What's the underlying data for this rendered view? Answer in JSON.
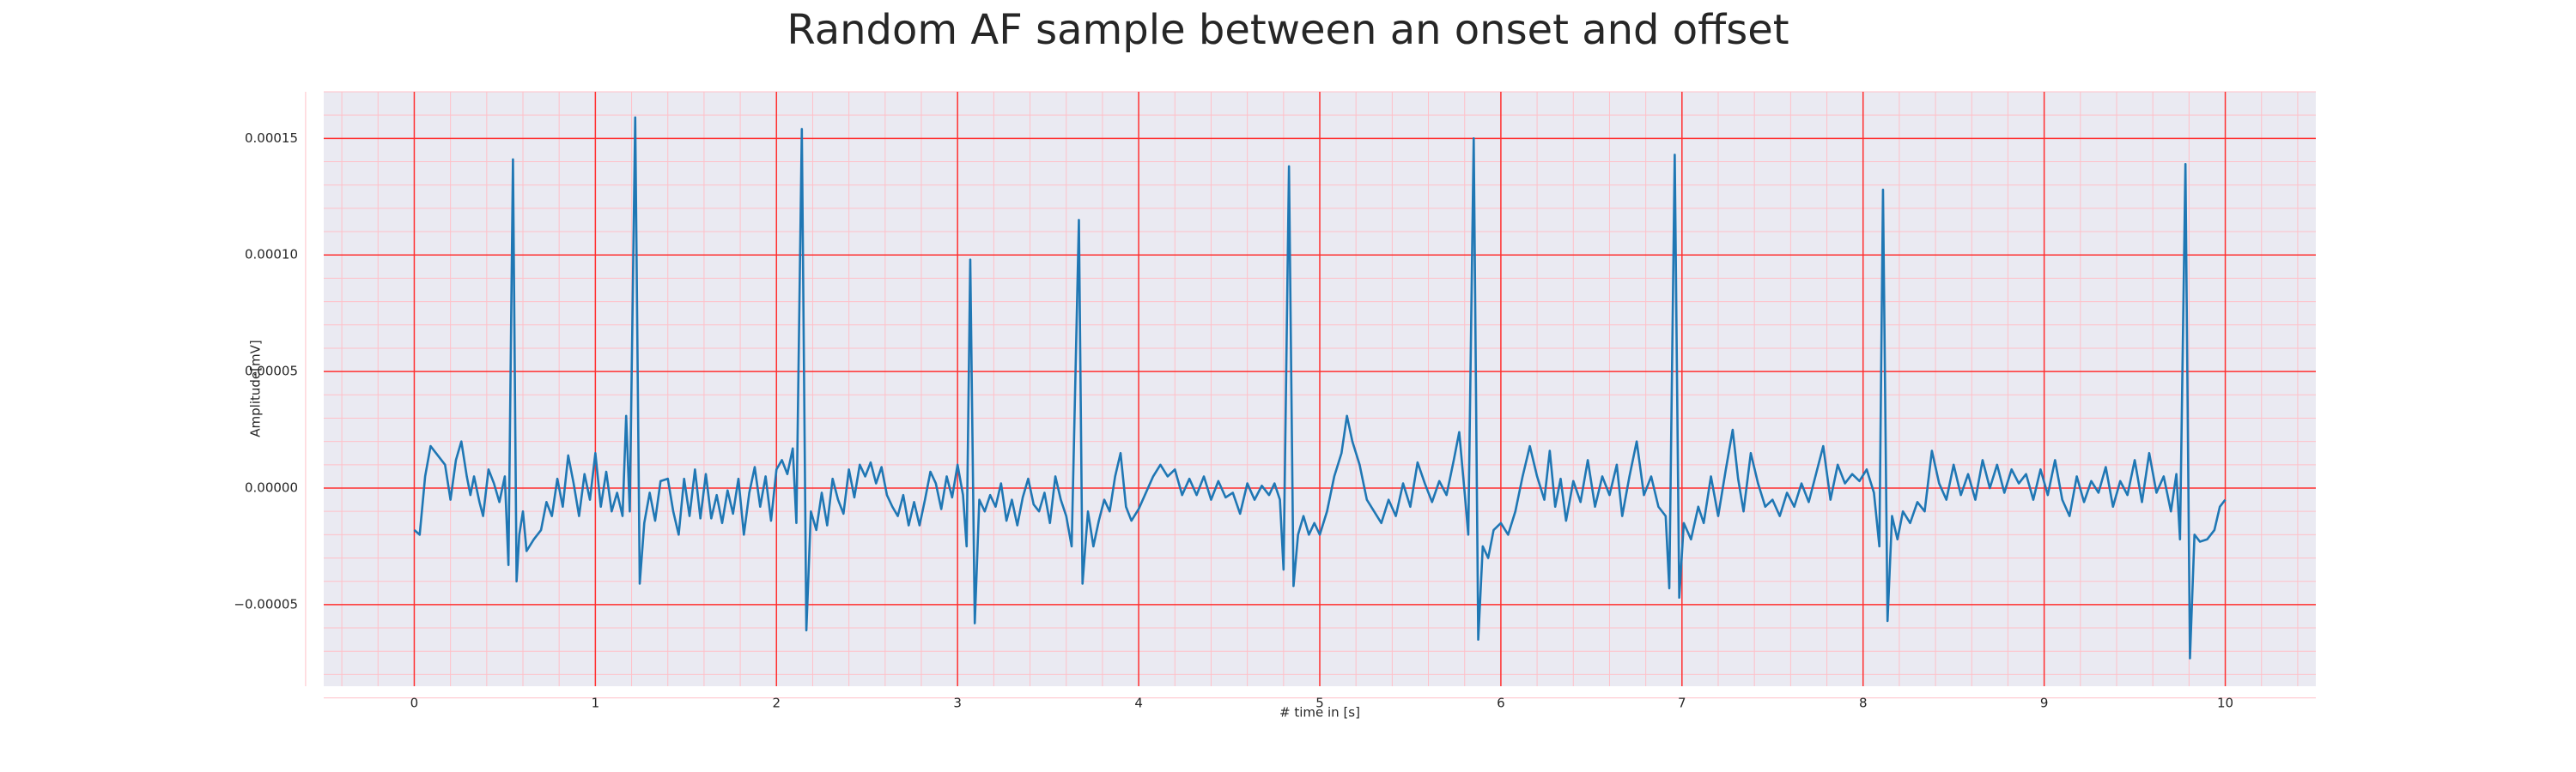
{
  "chart_data": {
    "type": "line",
    "title": "Random AF sample between an onset and offset",
    "xlabel": "# time in [s]",
    "ylabel": "Amplitude[mV]",
    "color": "#1f77b4",
    "grid": true,
    "minor_grid": true,
    "xlim": [
      -0.5,
      10.5
    ],
    "ylim": [
      -8.5e-05,
      0.00017
    ],
    "xticks": [
      0,
      1,
      2,
      3,
      4,
      5,
      6,
      7,
      8,
      9,
      10
    ],
    "yticks": [
      {
        "value": -5e-05,
        "label": "−0.00005"
      },
      {
        "value": 0,
        "label": "0.00000"
      },
      {
        "value": 5e-05,
        "label": "0.00005"
      },
      {
        "value": 0.0001,
        "label": "0.00010"
      },
      {
        "value": 0.00015,
        "label": "0.00015"
      }
    ],
    "x": [
      0.0,
      0.03,
      0.06,
      0.09,
      0.13,
      0.17,
      0.2,
      0.23,
      0.26,
      0.29,
      0.31,
      0.33,
      0.36,
      0.38,
      0.41,
      0.44,
      0.47,
      0.5,
      0.52,
      0.545,
      0.565,
      0.58,
      0.6,
      0.62,
      0.66,
      0.7,
      0.73,
      0.76,
      0.79,
      0.82,
      0.85,
      0.88,
      0.91,
      0.94,
      0.97,
      1.0,
      1.03,
      1.06,
      1.09,
      1.12,
      1.15,
      1.17,
      1.19,
      1.22,
      1.245,
      1.27,
      1.3,
      1.33,
      1.36,
      1.4,
      1.43,
      1.46,
      1.49,
      1.52,
      1.55,
      1.58,
      1.61,
      1.64,
      1.67,
      1.7,
      1.73,
      1.76,
      1.79,
      1.82,
      1.85,
      1.88,
      1.91,
      1.94,
      1.97,
      2.0,
      2.03,
      2.06,
      2.09,
      2.11,
      2.14,
      2.165,
      2.19,
      2.22,
      2.25,
      2.28,
      2.31,
      2.34,
      2.37,
      2.4,
      2.43,
      2.46,
      2.49,
      2.52,
      2.55,
      2.58,
      2.61,
      2.64,
      2.67,
      2.7,
      2.73,
      2.76,
      2.79,
      2.82,
      2.85,
      2.88,
      2.91,
      2.94,
      2.97,
      3.0,
      3.03,
      3.05,
      3.07,
      3.095,
      3.12,
      3.15,
      3.18,
      3.21,
      3.24,
      3.27,
      3.3,
      3.33,
      3.36,
      3.39,
      3.42,
      3.45,
      3.48,
      3.51,
      3.54,
      3.57,
      3.6,
      3.63,
      3.67,
      3.69,
      3.72,
      3.75,
      3.78,
      3.81,
      3.84,
      3.87,
      3.9,
      3.93,
      3.96,
      4.0,
      4.04,
      4.08,
      4.12,
      4.16,
      4.2,
      4.24,
      4.28,
      4.32,
      4.36,
      4.4,
      4.44,
      4.48,
      4.52,
      4.56,
      4.6,
      4.64,
      4.68,
      4.72,
      4.75,
      4.78,
      4.8,
      4.83,
      4.855,
      4.88,
      4.91,
      4.94,
      4.97,
      5.0,
      5.04,
      5.08,
      5.12,
      5.15,
      5.18,
      5.22,
      5.26,
      5.3,
      5.34,
      5.38,
      5.42,
      5.46,
      5.5,
      5.54,
      5.58,
      5.62,
      5.66,
      5.7,
      5.74,
      5.77,
      5.8,
      5.82,
      5.85,
      5.875,
      5.9,
      5.93,
      5.96,
      6.0,
      6.04,
      6.08,
      6.12,
      6.16,
      6.2,
      6.24,
      6.27,
      6.3,
      6.33,
      6.36,
      6.4,
      6.44,
      6.48,
      6.52,
      6.56,
      6.6,
      6.64,
      6.67,
      6.71,
      6.75,
      6.79,
      6.83,
      6.87,
      6.91,
      6.93,
      6.96,
      6.985,
      7.01,
      7.05,
      7.09,
      7.12,
      7.16,
      7.2,
      7.24,
      7.28,
      7.31,
      7.34,
      7.38,
      7.42,
      7.46,
      7.5,
      7.54,
      7.58,
      7.62,
      7.66,
      7.7,
      7.74,
      7.78,
      7.82,
      7.86,
      7.9,
      7.94,
      7.98,
      8.02,
      8.06,
      8.09,
      8.11,
      8.135,
      8.16,
      8.19,
      8.22,
      8.26,
      8.3,
      8.34,
      8.38,
      8.42,
      8.46,
      8.5,
      8.54,
      8.58,
      8.62,
      8.66,
      8.7,
      8.74,
      8.78,
      8.82,
      8.86,
      8.9,
      8.94,
      8.98,
      9.02,
      9.06,
      9.1,
      9.14,
      9.18,
      9.22,
      9.26,
      9.3,
      9.34,
      9.38,
      9.42,
      9.46,
      9.5,
      9.54,
      9.58,
      9.62,
      9.66,
      9.7,
      9.73,
      9.75,
      9.78,
      9.805,
      9.83,
      9.86,
      9.9,
      9.94,
      9.97,
      10.0
    ],
    "values": [
      -1.8e-05,
      -2e-05,
      5e-06,
      1.8e-05,
      1.4e-05,
      1e-05,
      -5e-06,
      1.2e-05,
      2e-05,
      5e-06,
      -3e-06,
      5e-06,
      -6e-06,
      -1.2e-05,
      8e-06,
      2e-06,
      -6e-06,
      5e-06,
      -3.3e-05,
      0.000141,
      -4e-05,
      -2e-05,
      -1e-05,
      -2.7e-05,
      -2.2e-05,
      -1.8e-05,
      -6e-06,
      -1.2e-05,
      4e-06,
      -8e-06,
      1.4e-05,
      2e-06,
      -1.2e-05,
      6e-06,
      -5e-06,
      1.5e-05,
      -8e-06,
      7e-06,
      -1e-05,
      -2e-06,
      -1.2e-05,
      3.1e-05,
      -1e-05,
      0.000159,
      -4.1e-05,
      -1.5e-05,
      -2e-06,
      -1.4e-05,
      3e-06,
      4e-06,
      -1e-05,
      -2e-05,
      4e-06,
      -1.2e-05,
      8e-06,
      -1.3e-05,
      6e-06,
      -1.3e-05,
      -3e-06,
      -1.5e-05,
      -1e-06,
      -1.1e-05,
      4e-06,
      -2e-05,
      -2e-06,
      9e-06,
      -8e-06,
      5e-06,
      -1.4e-05,
      8e-06,
      1.2e-05,
      6e-06,
      1.7e-05,
      -1.5e-05,
      0.000154,
      -6.1e-05,
      -1e-05,
      -1.8e-05,
      -2e-06,
      -1.6e-05,
      4e-06,
      -5e-06,
      -1.1e-05,
      8e-06,
      -4e-06,
      1e-05,
      5e-06,
      1.1e-05,
      2e-06,
      9e-06,
      -3e-06,
      -8e-06,
      -1.2e-05,
      -3e-06,
      -1.6e-05,
      -6e-06,
      -1.6e-05,
      -5e-06,
      7e-06,
      2e-06,
      -9e-06,
      5e-06,
      -4e-06,
      1e-05,
      -3e-06,
      -2.5e-05,
      9.8e-05,
      -5.8e-05,
      -5e-06,
      -1e-05,
      -3e-06,
      -8e-06,
      2e-06,
      -1.4e-05,
      -5e-06,
      -1.6e-05,
      -4e-06,
      4e-06,
      -7e-06,
      -1e-05,
      -2e-06,
      -1.5e-05,
      5e-06,
      -5e-06,
      -1.2e-05,
      -2.5e-05,
      0.000115,
      -4.1e-05,
      -1e-05,
      -2.5e-05,
      -1.4e-05,
      -5e-06,
      -1e-05,
      5e-06,
      1.5e-05,
      -8e-06,
      -1.4e-05,
      -9e-06,
      -2e-06,
      5e-06,
      1e-05,
      5e-06,
      8e-06,
      -3e-06,
      4e-06,
      -3e-06,
      5e-06,
      -5e-06,
      3e-06,
      -4e-06,
      -2e-06,
      -1.1e-05,
      2e-06,
      -5e-06,
      1e-06,
      -3e-06,
      2e-06,
      -5e-06,
      -3.5e-05,
      0.000138,
      -4.2e-05,
      -2e-05,
      -1.2e-05,
      -2e-05,
      -1.5e-05,
      -2e-05,
      -1e-05,
      5e-06,
      1.5e-05,
      3.1e-05,
      2e-05,
      1e-05,
      -5e-06,
      -1e-05,
      -1.5e-05,
      -5e-06,
      -1.2e-05,
      2e-06,
      -8e-06,
      1.1e-05,
      2e-06,
      -6e-06,
      3e-06,
      -3e-06,
      1.2e-05,
      2.4e-05,
      -2e-06,
      -2e-05,
      0.00015,
      -6.5e-05,
      -2.5e-05,
      -3e-05,
      -1.8e-05,
      -1.5e-05,
      -2e-05,
      -1e-05,
      5e-06,
      1.8e-05,
      5e-06,
      -5e-06,
      1.6e-05,
      -8e-06,
      4e-06,
      -1.4e-05,
      3e-06,
      -6e-06,
      1.2e-05,
      -8e-06,
      5e-06,
      -3e-06,
      1e-05,
      -1.2e-05,
      5e-06,
      2e-05,
      -3e-06,
      5e-06,
      -8e-06,
      -1.2e-05,
      -4.3e-05,
      0.000143,
      -4.7e-05,
      -1.5e-05,
      -2.2e-05,
      -8e-06,
      -1.5e-05,
      5e-06,
      -1.2e-05,
      7e-06,
      2.5e-05,
      4e-06,
      -1e-05,
      1.5e-05,
      2e-06,
      -8e-06,
      -5e-06,
      -1.2e-05,
      -2e-06,
      -8e-06,
      2e-06,
      -6e-06,
      6e-06,
      1.8e-05,
      -5e-06,
      1e-05,
      2e-06,
      6e-06,
      3e-06,
      8e-06,
      -2e-06,
      -2.5e-05,
      0.000128,
      -5.7e-05,
      -1.2e-05,
      -2.2e-05,
      -1e-05,
      -1.5e-05,
      -6e-06,
      -1e-05,
      1.6e-05,
      2e-06,
      -5e-06,
      1e-05,
      -3e-06,
      6e-06,
      -5e-06,
      1.2e-05,
      0.0,
      1e-05,
      -2e-06,
      8e-06,
      2e-06,
      6e-06,
      -5e-06,
      8e-06,
      -3e-06,
      1.2e-05,
      -5e-06,
      -1.2e-05,
      5e-06,
      -6e-06,
      3e-06,
      -2e-06,
      9e-06,
      -8e-06,
      3e-06,
      -3e-06,
      1.2e-05,
      -6e-06,
      1.5e-05,
      -2e-06,
      5e-06,
      -1e-05,
      6e-06,
      -2.2e-05,
      0.000139,
      -7.3e-05,
      -2e-05,
      -2.3e-05,
      -2.2e-05,
      -1.8e-05,
      -8e-06,
      -5e-06
    ]
  }
}
